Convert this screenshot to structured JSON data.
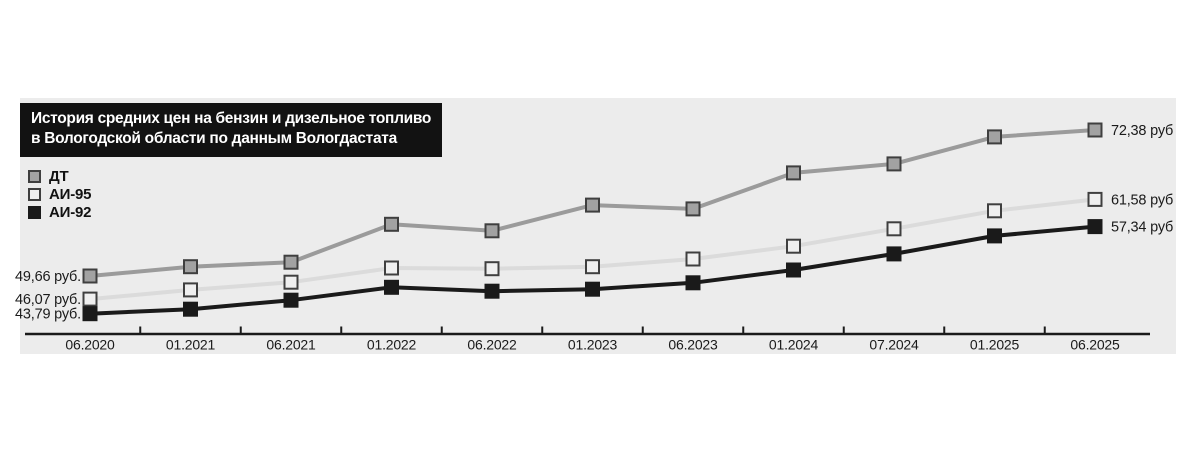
{
  "page": {
    "background": "#ffffff"
  },
  "panel": {
    "background": "#ececec"
  },
  "title": {
    "line1": "История средних цен на бензин и дизельное топливо",
    "line2": "в Вологодской области по данным Вологдастата",
    "background": "#121212",
    "text_color": "#ffffff"
  },
  "legend": {
    "position": "top-left",
    "items": [
      {
        "label": "ДТ",
        "swatch_fill": "#a2a2a2",
        "swatch_border": "#3f3f3f"
      },
      {
        "label": "АИ-95",
        "swatch_fill": "#efefef",
        "swatch_border": "#3f3f3f"
      },
      {
        "label": "АИ-92",
        "swatch_fill": "#1a1a1a",
        "swatch_border": "#1a1a1a"
      }
    ]
  },
  "chart_data": {
    "type": "line",
    "title": "История средних цен на бензин и дизельное топливо в Вологодской области по данным Вологдастата",
    "xlabel": "",
    "ylabel": "",
    "grid": false,
    "legend_position": "top-left",
    "axis_color": "#1a1a1a",
    "ylim": [
      41,
      75
    ],
    "categories": [
      "06.2020",
      "01.2021",
      "06.2021",
      "01.2022",
      "06.2022",
      "01.2023",
      "06.2023",
      "01.2024",
      "07.2024",
      "01.2025",
      "06.2025"
    ],
    "series": [
      {
        "id": "dt",
        "name": "ДТ",
        "color": "#9b9b9b",
        "marker_fill": "#a2a2a2",
        "marker_border": "#3f3f3f",
        "values": [
          49.66,
          51.1,
          51.8,
          57.7,
          56.7,
          60.7,
          60.1,
          65.7,
          67.1,
          71.3,
          72.38
        ],
        "first_label": "49,66 руб.",
        "last_label": "72,38 руб"
      },
      {
        "id": "ai95",
        "name": "АИ-95",
        "color": "#dbdbdb",
        "marker_fill": "#efefef",
        "marker_border": "#3f3f3f",
        "values": [
          46.07,
          47.5,
          48.7,
          50.9,
          50.8,
          51.1,
          52.3,
          54.3,
          57.0,
          59.8,
          61.58
        ],
        "first_label": "46,07 руб.",
        "last_label": "61,58 руб"
      },
      {
        "id": "ai92",
        "name": "АИ-92",
        "color": "#1a1a1a",
        "marker_fill": "#1a1a1a",
        "marker_border": "#1a1a1a",
        "values": [
          43.79,
          44.5,
          45.9,
          47.9,
          47.3,
          47.6,
          48.6,
          50.6,
          53.1,
          55.9,
          57.34
        ],
        "first_label": "43,79 руб.",
        "last_label": "57,34 руб"
      }
    ]
  }
}
